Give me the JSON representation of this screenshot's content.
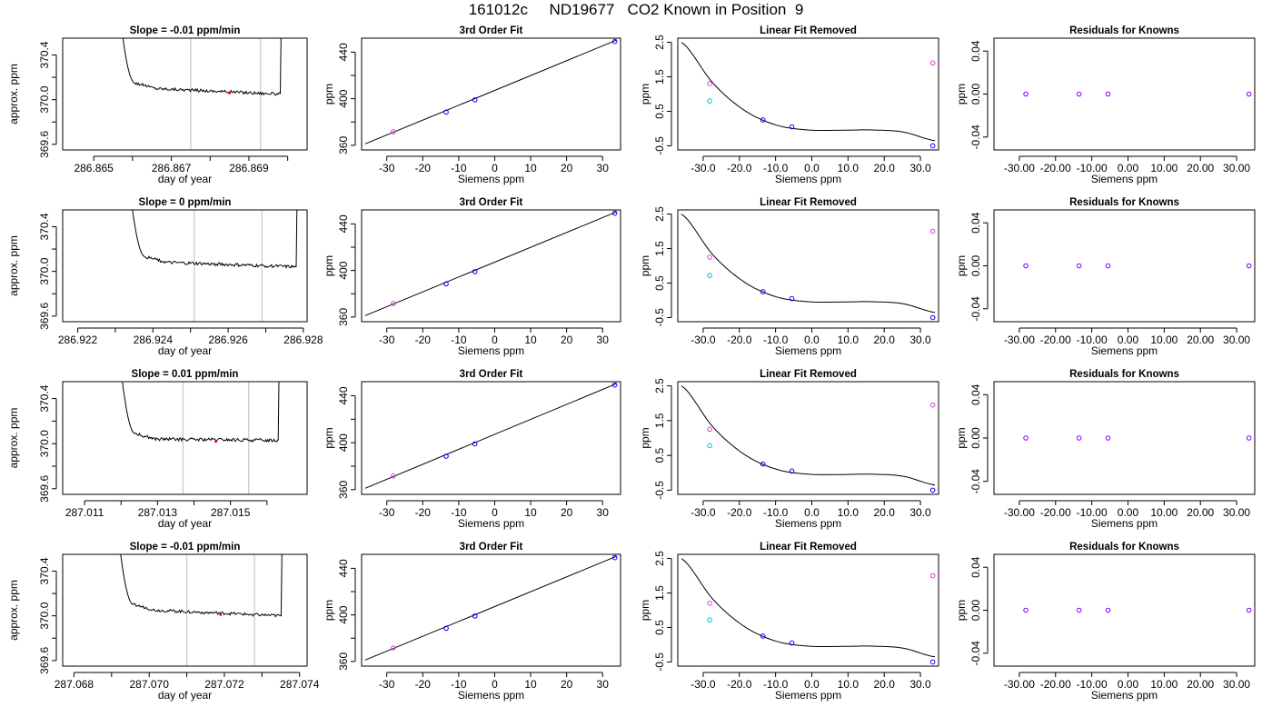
{
  "page": {
    "title": "161012c     ND19677   CO2 Known in Position  9"
  },
  "colors": {
    "axis": "#000000",
    "trace": "#000000",
    "marker_line": "#c8c8c8",
    "point_blue": "#0000ff",
    "point_cyan": "#00bfd8",
    "point_magenta": "#e040e0",
    "point_purple": "#8000ff",
    "point_red": "#ff0000"
  },
  "chart_data": [
    {
      "type": "line",
      "panel": "trace",
      "row": 0,
      "title": "Slope =  -0.01  ppm/min",
      "xlabel": "day of year",
      "ylabel": "approx. ppm",
      "xlim": [
        286.8642,
        286.8705
      ],
      "ylim": [
        369.55,
        370.55
      ],
      "xticks": [
        286.865,
        286.866,
        286.867,
        286.868,
        286.869,
        286.87
      ],
      "xtick_labels": [
        "286.865",
        "",
        "286.867",
        "",
        "286.869",
        ""
      ],
      "yticks": [
        369.6,
        369.8,
        370.0,
        370.2,
        370.4
      ],
      "ytick_labels": [
        "369.6",
        "",
        "370.0",
        "",
        "370.4"
      ],
      "vlines": [
        286.8675,
        286.8693
      ],
      "trace": {
        "x_start": 286.8656,
        "x_end": 286.8698,
        "plateau": 370.1,
        "jitter": 0.012,
        "end_value": 370.05
      },
      "red_point": {
        "x": 286.8685,
        "y": 370.06
      }
    },
    {
      "type": "scatter",
      "panel": "fit",
      "row": 0,
      "title": "3rd Order Fit",
      "xlabel": "Siemens ppm",
      "ylabel": "ppm",
      "xlim": [
        -37,
        35
      ],
      "ylim": [
        356,
        452
      ],
      "xticks": [
        -30,
        -20,
        -10,
        0,
        10,
        20,
        30
      ],
      "yticks": [
        360,
        380,
        400,
        420,
        440
      ],
      "ytick_labels": [
        "360",
        "",
        "400",
        "",
        "440"
      ],
      "curve": [
        {
          "x": -36,
          "y": 361.2
        },
        {
          "x": 34,
          "y": 450.5
        }
      ],
      "points": [
        {
          "x": -28.2,
          "y": 371.6,
          "color": "#e040e0"
        },
        {
          "x": -13.5,
          "y": 388.5,
          "color": "#0000ff"
        },
        {
          "x": -5.5,
          "y": 399.0,
          "color": "#0000ff"
        },
        {
          "x": 33.4,
          "y": 449.2,
          "color": "#0000ff"
        }
      ]
    },
    {
      "type": "scatter",
      "panel": "lin",
      "row": 0,
      "title": "Linear Fit Removed",
      "xlabel": "Siemens ppm",
      "ylabel": "ppm",
      "xlim": [
        -37,
        35
      ],
      "ylim": [
        -0.62,
        2.62
      ],
      "xticks": [
        -30,
        -20,
        -10,
        0,
        10,
        20,
        30
      ],
      "yticks": [
        -0.5,
        0.5,
        1.5,
        2.5
      ],
      "curve_y": [
        2.5,
        1.31,
        0.52,
        0.1,
        -0.04,
        -0.05,
        -0.04,
        -0.1,
        -0.35
      ],
      "points": [
        {
          "x": -28.2,
          "y": 1.3,
          "color": "#e040e0"
        },
        {
          "x": -28.2,
          "y": 0.8,
          "color": "#00bfd8"
        },
        {
          "x": -13.5,
          "y": 0.25,
          "color": "#0000ff"
        },
        {
          "x": -5.5,
          "y": 0.05,
          "color": "#0000ff"
        },
        {
          "x": 33.4,
          "y": 1.9,
          "color": "#e040e0"
        },
        {
          "x": 33.4,
          "y": -0.5,
          "color": "#0000ff"
        }
      ]
    },
    {
      "type": "scatter",
      "panel": "res",
      "row": 0,
      "title": "Residuals for Knowns",
      "xlabel": "Siemens ppm",
      "ylabel": "ppm",
      "xlim": [
        -37,
        35
      ],
      "ylim": [
        -0.052,
        0.052
      ],
      "xticks": [
        -30,
        -20,
        -10,
        0,
        10,
        20,
        30
      ],
      "yticks": [
        -0.04,
        0.0,
        0.04
      ],
      "ytick_labels": [
        "-0.04",
        "0.00",
        "0.04"
      ],
      "points": [
        {
          "x": -28.2,
          "y": 0.0,
          "color": "#8000ff"
        },
        {
          "x": -13.5,
          "y": 0.0,
          "color": "#8000ff"
        },
        {
          "x": -5.5,
          "y": 0.0,
          "color": "#8000ff"
        },
        {
          "x": 33.4,
          "y": 0.0,
          "color": "#8000ff"
        }
      ]
    },
    {
      "type": "line",
      "panel": "trace",
      "row": 1,
      "title": "Slope =  0  ppm/min",
      "xlabel": "day of year",
      "ylabel": "approx. ppm",
      "xlim": [
        286.9216,
        286.9281
      ],
      "ylim": [
        369.55,
        370.55
      ],
      "xticks": [
        286.922,
        286.923,
        286.924,
        286.925,
        286.926,
        286.927,
        286.928
      ],
      "xtick_labels": [
        "286.922",
        "",
        "286.924",
        "",
        "286.926",
        "",
        "286.928"
      ],
      "yticks": [
        369.6,
        369.8,
        370.0,
        370.2,
        370.4
      ],
      "ytick_labels": [
        "369.6",
        "",
        "370.0",
        "",
        "370.4"
      ],
      "vlines": [
        286.9251,
        286.9269
      ],
      "trace": {
        "x_start": 286.9233,
        "x_end": 286.9278,
        "plateau": 370.08,
        "jitter": 0.013,
        "end_value": 370.04
      },
      "red_point": null
    },
    {
      "type": "scatter",
      "panel": "fit",
      "row": 1,
      "title": "3rd Order Fit",
      "xlabel": "Siemens ppm",
      "ylabel": "ppm",
      "xlim": [
        -37,
        35
      ],
      "ylim": [
        356,
        452
      ],
      "xticks": [
        -30,
        -20,
        -10,
        0,
        10,
        20,
        30
      ],
      "yticks": [
        360,
        380,
        400,
        420,
        440
      ],
      "ytick_labels": [
        "360",
        "",
        "400",
        "",
        "440"
      ],
      "curve": [
        {
          "x": -36,
          "y": 361.2
        },
        {
          "x": 34,
          "y": 450.5
        }
      ],
      "points": [
        {
          "x": -28.2,
          "y": 371.6,
          "color": "#e040e0"
        },
        {
          "x": -13.5,
          "y": 388.5,
          "color": "#0000ff"
        },
        {
          "x": -5.5,
          "y": 399.0,
          "color": "#0000ff"
        },
        {
          "x": 33.4,
          "y": 449.2,
          "color": "#0000ff"
        }
      ]
    },
    {
      "type": "scatter",
      "panel": "lin",
      "row": 1,
      "title": "Linear Fit Removed",
      "xlabel": "Siemens ppm",
      "ylabel": "ppm",
      "xlim": [
        -37,
        35
      ],
      "ylim": [
        -0.62,
        2.62
      ],
      "xticks": [
        -30,
        -20,
        -10,
        0,
        10,
        20,
        30
      ],
      "yticks": [
        -0.5,
        0.5,
        1.5,
        2.5
      ],
      "curve_y": [
        2.5,
        1.31,
        0.52,
        0.1,
        -0.04,
        -0.05,
        -0.04,
        -0.1,
        -0.35
      ],
      "points": [
        {
          "x": -28.2,
          "y": 1.25,
          "color": "#e040e0"
        },
        {
          "x": -28.2,
          "y": 0.72,
          "color": "#00bfd8"
        },
        {
          "x": -13.5,
          "y": 0.25,
          "color": "#0000ff"
        },
        {
          "x": -5.5,
          "y": 0.05,
          "color": "#0000ff"
        },
        {
          "x": 33.4,
          "y": 2.0,
          "color": "#e040e0"
        },
        {
          "x": 33.4,
          "y": -0.5,
          "color": "#0000ff"
        }
      ]
    },
    {
      "type": "scatter",
      "panel": "res",
      "row": 1,
      "title": "Residuals for Knowns",
      "xlabel": "Siemens ppm",
      "ylabel": "ppm",
      "xlim": [
        -37,
        35
      ],
      "ylim": [
        -0.052,
        0.052
      ],
      "xticks": [
        -30,
        -20,
        -10,
        0,
        10,
        20,
        30
      ],
      "yticks": [
        -0.04,
        0.0,
        0.04
      ],
      "ytick_labels": [
        "-0.04",
        "0.00",
        "0.04"
      ],
      "points": [
        {
          "x": -28.2,
          "y": 0.0,
          "color": "#8000ff"
        },
        {
          "x": -13.5,
          "y": 0.0,
          "color": "#8000ff"
        },
        {
          "x": -5.5,
          "y": 0.0,
          "color": "#8000ff"
        },
        {
          "x": 33.4,
          "y": 0.0,
          "color": "#8000ff"
        }
      ]
    },
    {
      "type": "line",
      "panel": "trace",
      "row": 2,
      "title": "Slope =  0.01  ppm/min",
      "xlabel": "day of year",
      "ylabel": "approx. ppm",
      "xlim": [
        287.0104,
        287.0171
      ],
      "ylim": [
        369.55,
        370.55
      ],
      "xticks": [
        287.011,
        287.012,
        287.013,
        287.014,
        287.015,
        287.016
      ],
      "xtick_labels": [
        "287.011",
        "",
        "287.013",
        "",
        "287.015",
        ""
      ],
      "yticks": [
        369.6,
        369.8,
        370.0,
        370.2,
        370.4
      ],
      "ytick_labels": [
        "369.6",
        "",
        "370.0",
        "",
        "370.4"
      ],
      "vlines": [
        287.0137,
        287.0155
      ],
      "trace": {
        "x_start": 287.0119,
        "x_end": 287.0163,
        "plateau": 370.04,
        "jitter": 0.013,
        "end_value": 370.03
      },
      "red_point": {
        "x": 287.0146,
        "y": 370.02
      }
    },
    {
      "type": "scatter",
      "panel": "fit",
      "row": 2,
      "title": "3rd Order Fit",
      "xlabel": "Siemens ppm",
      "ylabel": "ppm",
      "xlim": [
        -37,
        35
      ],
      "ylim": [
        356,
        452
      ],
      "xticks": [
        -30,
        -20,
        -10,
        0,
        10,
        20,
        30
      ],
      "yticks": [
        360,
        380,
        400,
        420,
        440
      ],
      "ytick_labels": [
        "360",
        "",
        "400",
        "",
        "440"
      ],
      "curve": [
        {
          "x": -36,
          "y": 361.2
        },
        {
          "x": 34,
          "y": 450.5
        }
      ],
      "points": [
        {
          "x": -28.2,
          "y": 371.6,
          "color": "#e040e0"
        },
        {
          "x": -13.5,
          "y": 388.5,
          "color": "#0000ff"
        },
        {
          "x": -5.5,
          "y": 399.0,
          "color": "#0000ff"
        },
        {
          "x": 33.4,
          "y": 449.2,
          "color": "#0000ff"
        }
      ]
    },
    {
      "type": "scatter",
      "panel": "lin",
      "row": 2,
      "title": "Linear Fit Removed",
      "xlabel": "Siemens ppm",
      "ylabel": "ppm",
      "xlim": [
        -37,
        35
      ],
      "ylim": [
        -0.62,
        2.62
      ],
      "xticks": [
        -30,
        -20,
        -10,
        0,
        10,
        20,
        30
      ],
      "yticks": [
        -0.5,
        0.5,
        1.5,
        2.5
      ],
      "curve_y": [
        2.5,
        1.31,
        0.52,
        0.1,
        -0.04,
        -0.05,
        -0.04,
        -0.1,
        -0.35
      ],
      "points": [
        {
          "x": -28.2,
          "y": 1.25,
          "color": "#e040e0"
        },
        {
          "x": -28.2,
          "y": 0.78,
          "color": "#00bfd8"
        },
        {
          "x": -13.5,
          "y": 0.25,
          "color": "#0000ff"
        },
        {
          "x": -5.5,
          "y": 0.05,
          "color": "#0000ff"
        },
        {
          "x": 33.4,
          "y": 1.95,
          "color": "#e040e0"
        },
        {
          "x": 33.4,
          "y": -0.5,
          "color": "#0000ff"
        }
      ]
    },
    {
      "type": "scatter",
      "panel": "res",
      "row": 2,
      "title": "Residuals for Knowns",
      "xlabel": "Siemens ppm",
      "ylabel": "ppm",
      "xlim": [
        -37,
        35
      ],
      "ylim": [
        -0.052,
        0.052
      ],
      "xticks": [
        -30,
        -20,
        -10,
        0,
        10,
        20,
        30
      ],
      "yticks": [
        -0.04,
        0.0,
        0.04
      ],
      "ytick_labels": [
        "-0.04",
        "0.00",
        "0.04"
      ],
      "points": [
        {
          "x": -28.2,
          "y": 0.0,
          "color": "#8000ff"
        },
        {
          "x": -13.5,
          "y": 0.0,
          "color": "#8000ff"
        },
        {
          "x": -5.5,
          "y": 0.0,
          "color": "#8000ff"
        },
        {
          "x": 33.4,
          "y": 0.0,
          "color": "#8000ff"
        }
      ]
    },
    {
      "type": "line",
      "panel": "trace",
      "row": 3,
      "title": "Slope =  -0.01  ppm/min",
      "xlabel": "day of year",
      "ylabel": "approx. ppm",
      "xlim": [
        287.0677,
        287.0742
      ],
      "ylim": [
        369.55,
        370.55
      ],
      "xticks": [
        287.068,
        287.069,
        287.07,
        287.071,
        287.072,
        287.073,
        287.074
      ],
      "xtick_labels": [
        "287.068",
        "",
        "287.070",
        "",
        "287.072",
        "",
        "287.074"
      ],
      "yticks": [
        369.6,
        369.8,
        370.0,
        370.2,
        370.4
      ],
      "ytick_labels": [
        "369.6",
        "",
        "370.0",
        "",
        "370.4"
      ],
      "vlines": [
        287.071,
        287.0728
      ],
      "trace": {
        "x_start": 287.0691,
        "x_end": 287.0735,
        "plateau": 370.05,
        "jitter": 0.012,
        "end_value": 370.0
      },
      "red_point": {
        "x": 287.0719,
        "y": 370.01
      }
    },
    {
      "type": "scatter",
      "panel": "fit",
      "row": 3,
      "title": "3rd Order Fit",
      "xlabel": "Siemens ppm",
      "ylabel": "ppm",
      "xlim": [
        -37,
        35
      ],
      "ylim": [
        356,
        452
      ],
      "xticks": [
        -30,
        -20,
        -10,
        0,
        10,
        20,
        30
      ],
      "yticks": [
        360,
        380,
        400,
        420,
        440
      ],
      "ytick_labels": [
        "360",
        "",
        "400",
        "",
        "440"
      ],
      "curve": [
        {
          "x": -36,
          "y": 361.2
        },
        {
          "x": 34,
          "y": 450.5
        }
      ],
      "points": [
        {
          "x": -28.2,
          "y": 371.6,
          "color": "#e040e0"
        },
        {
          "x": -13.5,
          "y": 388.5,
          "color": "#0000ff"
        },
        {
          "x": -5.5,
          "y": 399.0,
          "color": "#0000ff"
        },
        {
          "x": 33.4,
          "y": 449.2,
          "color": "#0000ff"
        }
      ]
    },
    {
      "type": "scatter",
      "panel": "lin",
      "row": 3,
      "title": "Linear Fit Removed",
      "xlabel": "Siemens ppm",
      "ylabel": "ppm",
      "xlim": [
        -37,
        35
      ],
      "ylim": [
        -0.62,
        2.62
      ],
      "xticks": [
        -30,
        -20,
        -10,
        0,
        10,
        20,
        30
      ],
      "yticks": [
        -0.5,
        0.5,
        1.5,
        2.5
      ],
      "curve_y": [
        2.5,
        1.31,
        0.52,
        0.1,
        -0.04,
        -0.05,
        -0.04,
        -0.1,
        -0.35
      ],
      "points": [
        {
          "x": -28.2,
          "y": 1.2,
          "color": "#e040e0"
        },
        {
          "x": -28.2,
          "y": 0.72,
          "color": "#00bfd8"
        },
        {
          "x": -13.5,
          "y": 0.25,
          "color": "#0000ff"
        },
        {
          "x": -5.5,
          "y": 0.05,
          "color": "#0000ff"
        },
        {
          "x": 33.4,
          "y": 2.0,
          "color": "#e040e0"
        },
        {
          "x": 33.4,
          "y": -0.5,
          "color": "#0000ff"
        }
      ]
    },
    {
      "type": "scatter",
      "panel": "res",
      "row": 3,
      "title": "Residuals for Knowns",
      "xlabel": "Siemens ppm",
      "ylabel": "ppm",
      "xlim": [
        -37,
        35
      ],
      "ylim": [
        -0.052,
        0.052
      ],
      "xticks": [
        -30,
        -20,
        -10,
        0,
        10,
        20,
        30
      ],
      "yticks": [
        -0.04,
        0.0,
        0.04
      ],
      "ytick_labels": [
        "-0.04",
        "0.00",
        "0.04"
      ],
      "points": [
        {
          "x": -28.2,
          "y": 0.0,
          "color": "#8000ff"
        },
        {
          "x": -13.5,
          "y": 0.0,
          "color": "#8000ff"
        },
        {
          "x": -5.5,
          "y": 0.0,
          "color": "#8000ff"
        },
        {
          "x": 33.4,
          "y": 0.0,
          "color": "#8000ff"
        }
      ]
    }
  ]
}
